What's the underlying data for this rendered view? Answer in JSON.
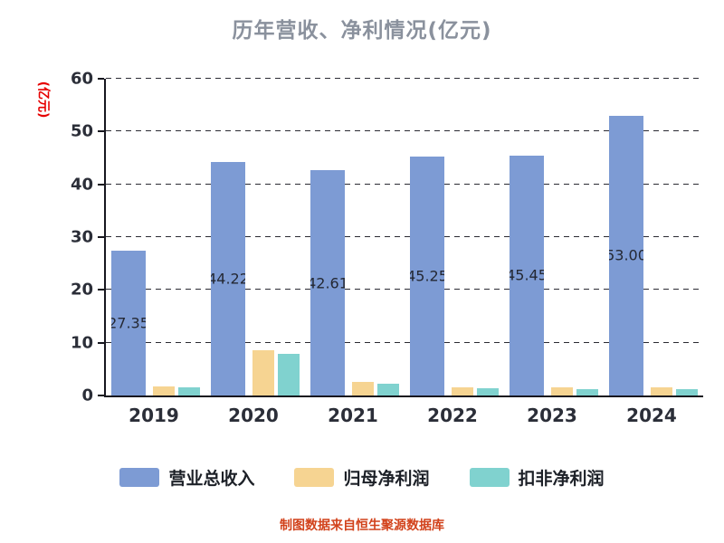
{
  "chart_data": {
    "type": "bar",
    "title": "历年营收、净利情况(亿元)",
    "ylabel": "(亿元)",
    "source_note": "制图数据来自恒生聚源数据库",
    "categories": [
      "2019",
      "2020",
      "2021",
      "2022",
      "2023",
      "2024"
    ],
    "series": [
      {
        "key": "total-operating-revenue",
        "name": "营业总收入",
        "color": "#7d9bd4",
        "show_labels": true,
        "labels": [
          "27.35",
          "44.22",
          "42.61",
          "45.25",
          "45.45",
          "53.00"
        ],
        "values": [
          27.35,
          44.22,
          42.61,
          45.25,
          45.45,
          53.0
        ]
      },
      {
        "key": "net-profit-attributable",
        "name": "归母净利润",
        "color": "#f6d492",
        "show_labels": false,
        "values": [
          1.7,
          8.6,
          2.5,
          1.6,
          1.55,
          1.6
        ]
      },
      {
        "key": "non-recurring-net-profit",
        "name": "扣非净利润",
        "color": "#80d2cf",
        "show_labels": false,
        "values": [
          1.5,
          7.9,
          2.2,
          1.35,
          1.2,
          1.2
        ]
      }
    ],
    "ylim": [
      0,
      60
    ],
    "y_ticks": [
      0,
      10,
      20,
      30,
      40,
      50,
      60
    ],
    "grid": "dashed-horizontal",
    "legend_position": "bottom",
    "colors": {
      "title": "#8a919d",
      "ylabel": "#e60000",
      "source_note": "#d2421b",
      "axis": "#17171f",
      "gridline": "#2b2b33",
      "tick_label": "#2b2e38",
      "bar_label": "#242833"
    }
  }
}
